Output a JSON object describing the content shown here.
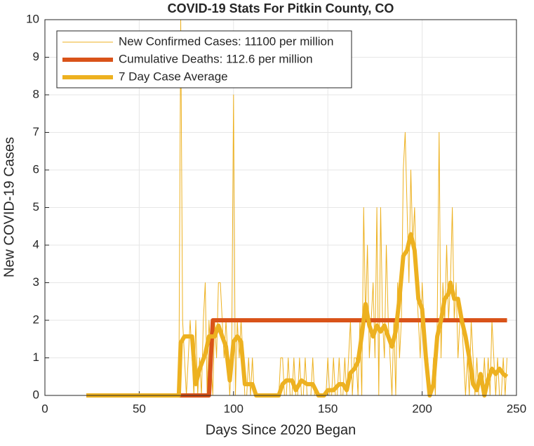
{
  "chart_data": {
    "type": "line",
    "title": "COVID-19 Stats For Pitkin County, CO",
    "xlabel": "Days Since 2020 Began",
    "ylabel": "New COVID-19 Cases",
    "xlim": [
      0,
      250
    ],
    "xticks": [
      0,
      50,
      100,
      150,
      200,
      250
    ],
    "ylim": [
      0,
      10
    ],
    "yticks": [
      0,
      1,
      2,
      3,
      4,
      5,
      6,
      7,
      8,
      9,
      10
    ],
    "grid": true,
    "legend": "upper-left",
    "series": [
      {
        "name": "New Confirmed Cases: 11100 per million",
        "color": "#edb120",
        "width": 1,
        "x": [
          22,
          23,
          24,
          25,
          26,
          27,
          28,
          29,
          30,
          31,
          32,
          33,
          34,
          35,
          36,
          37,
          38,
          39,
          40,
          41,
          42,
          43,
          44,
          45,
          46,
          47,
          48,
          49,
          50,
          51,
          52,
          53,
          54,
          55,
          56,
          57,
          58,
          59,
          60,
          61,
          62,
          63,
          64,
          65,
          66,
          67,
          68,
          69,
          70,
          71,
          72,
          73,
          74,
          75,
          76,
          77,
          78,
          79,
          80,
          81,
          82,
          83,
          84,
          85,
          86,
          87,
          88,
          89,
          90,
          91,
          92,
          93,
          94,
          95,
          96,
          97,
          98,
          99,
          100,
          101,
          102,
          103,
          104,
          105,
          106,
          107,
          108,
          109,
          110,
          111,
          112,
          113,
          114,
          115,
          116,
          117,
          118,
          119,
          120,
          121,
          122,
          123,
          124,
          125,
          126,
          127,
          128,
          129,
          130,
          131,
          132,
          133,
          134,
          135,
          136,
          137,
          138,
          139,
          140,
          141,
          142,
          143,
          144,
          145,
          146,
          147,
          148,
          149,
          150,
          151,
          152,
          153,
          154,
          155,
          156,
          157,
          158,
          159,
          160,
          161,
          162,
          163,
          164,
          165,
          166,
          167,
          168,
          169,
          170,
          171,
          172,
          173,
          174,
          175,
          176,
          177,
          178,
          179,
          180,
          181,
          182,
          183,
          184,
          185,
          186,
          187,
          188,
          189,
          190,
          191,
          192,
          193,
          194,
          195,
          196,
          197,
          198,
          199,
          200,
          201,
          202,
          203,
          204,
          205,
          206,
          207,
          208,
          209,
          210,
          211,
          212,
          213,
          214,
          215,
          216,
          217,
          218,
          219,
          220,
          221,
          222,
          223,
          224,
          225,
          226,
          227,
          228,
          229,
          230,
          231,
          232,
          233,
          234,
          235,
          236,
          237,
          238,
          239,
          240,
          241,
          242,
          243,
          244,
          245
        ],
        "values": [
          0,
          0,
          0,
          0,
          0,
          0,
          0,
          0,
          0,
          0,
          0,
          0,
          0,
          0,
          0,
          0,
          0,
          0,
          0,
          0,
          0,
          0,
          0,
          0,
          0,
          0,
          0,
          0,
          0,
          0,
          0,
          0,
          0,
          0,
          0,
          0,
          0,
          0,
          0,
          0,
          0,
          0,
          0,
          0,
          0,
          0,
          0,
          0,
          0,
          0,
          10,
          2,
          1,
          0,
          1,
          2,
          1,
          0,
          2,
          0,
          1,
          0,
          2,
          3,
          0,
          2,
          1,
          0,
          2,
          1,
          3,
          3,
          2,
          1,
          2,
          1,
          0,
          1,
          8,
          0,
          2,
          1,
          2,
          1,
          0,
          0,
          1,
          0,
          1,
          0,
          0,
          0,
          0,
          0,
          0,
          0,
          0,
          0,
          0,
          0,
          0,
          0,
          0,
          1,
          1,
          0,
          0,
          1,
          0,
          0,
          1,
          0,
          0,
          1,
          0,
          0,
          1,
          0,
          0,
          0,
          1,
          0,
          0,
          0,
          0,
          0,
          0,
          0,
          1,
          0,
          0,
          1,
          0,
          0,
          1,
          0,
          0,
          1,
          0,
          1,
          2,
          0,
          1,
          1,
          0,
          2,
          0,
          5,
          2,
          4,
          1,
          2,
          3,
          1,
          5,
          0,
          5,
          2,
          1,
          4,
          2,
          1,
          0,
          2,
          0,
          3,
          1,
          2,
          6,
          7,
          5,
          3,
          6,
          4,
          5,
          3,
          2,
          1,
          3,
          2,
          1,
          1,
          0,
          0,
          1,
          0,
          2,
          7,
          1,
          3,
          2,
          4,
          2,
          3,
          5,
          2,
          3,
          1,
          2,
          2,
          1,
          0,
          1,
          0,
          2,
          1,
          0,
          1,
          0,
          0,
          0,
          1,
          0,
          1,
          0,
          2,
          1,
          0,
          1,
          0,
          0,
          1,
          0,
          1
        ]
      },
      {
        "name": "Cumulative Deaths: 112.6 per million",
        "color": "#d95319",
        "width": 6,
        "x": [
          22,
          87,
          89,
          245
        ],
        "values": [
          0,
          0,
          2,
          2
        ]
      },
      {
        "name": "7 Day Case Average",
        "color": "#edb120",
        "width": 6,
        "x": [
          22,
          71,
          72,
          74,
          78,
          80,
          82,
          85,
          87,
          90,
          92,
          94,
          96,
          98,
          100,
          102,
          104,
          106,
          108,
          110,
          112,
          124,
          126,
          128,
          131,
          133,
          136,
          139,
          142,
          145,
          148,
          150,
          153,
          156,
          158,
          160,
          162,
          164,
          166,
          168,
          170,
          172,
          174,
          176,
          178,
          180,
          182,
          184,
          186,
          188,
          190,
          192,
          194,
          196,
          198,
          200,
          202,
          204,
          206,
          208,
          210,
          212,
          214,
          215,
          217,
          219,
          221,
          223,
          225,
          227,
          229,
          231,
          233,
          235,
          237,
          239,
          241,
          243,
          245
        ],
        "values": [
          0,
          0,
          1.4,
          1.57,
          1.57,
          0.3,
          0.7,
          1.1,
          1.57,
          1.57,
          1.86,
          1.57,
          1.3,
          0.4,
          1.43,
          1.57,
          1.43,
          0.3,
          0.3,
          0.3,
          0,
          0,
          0.3,
          0.4,
          0.4,
          0.14,
          0.4,
          0.3,
          0.3,
          0,
          0,
          0.14,
          0.14,
          0.3,
          0.3,
          0.14,
          0.6,
          0.7,
          0.9,
          1.6,
          2.43,
          1.86,
          1.57,
          1.86,
          1.7,
          1.86,
          1.57,
          1.3,
          1.71,
          2.6,
          3.71,
          3.86,
          4.29,
          3.86,
          2.57,
          2.3,
          1.0,
          0,
          0.3,
          1.57,
          2.0,
          2.57,
          2.71,
          3.0,
          2.57,
          2.57,
          2.0,
          1.57,
          1.0,
          0.3,
          0.14,
          0.57,
          0,
          0.43,
          0.71,
          0.57,
          0.71,
          0.57,
          0.5
        ]
      }
    ]
  }
}
